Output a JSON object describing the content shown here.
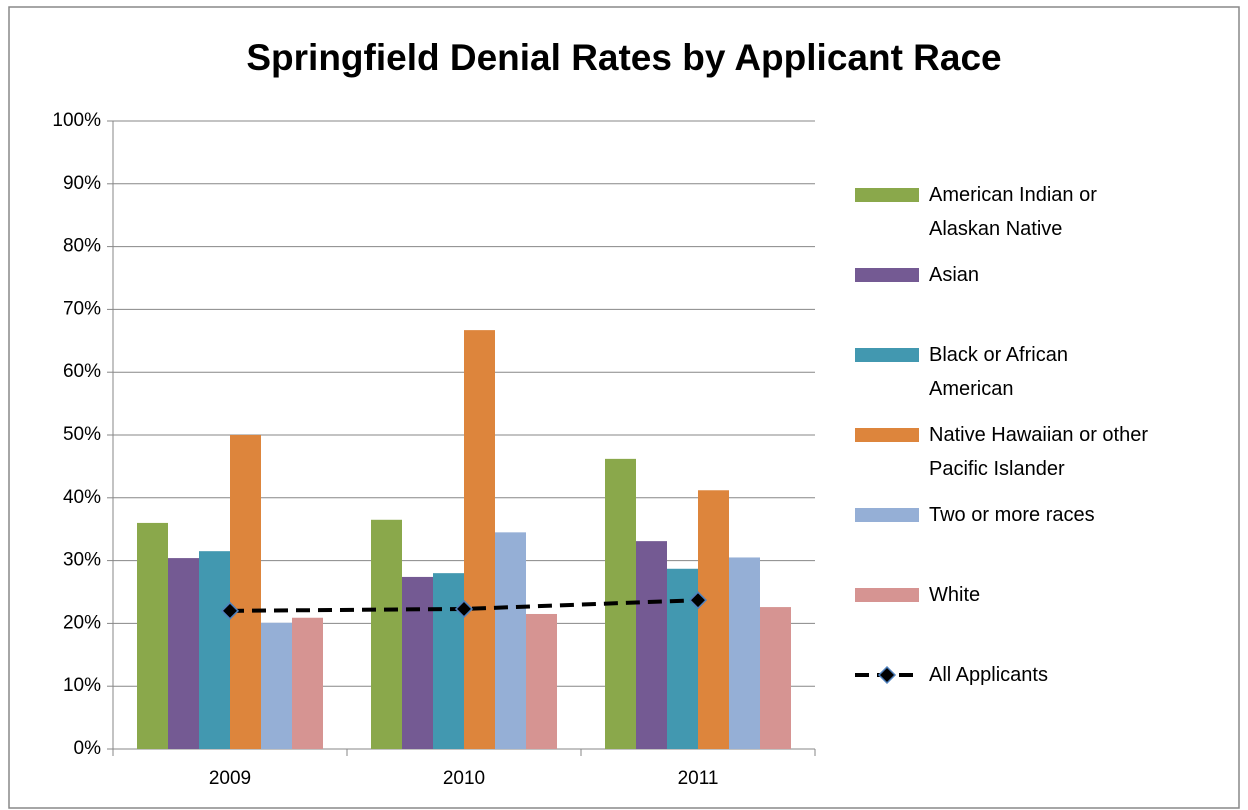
{
  "chart_data": {
    "type": "bar",
    "title": "Springfield Denial Rates by Applicant Race",
    "categories": [
      "2009",
      "2010",
      "2011"
    ],
    "series": [
      {
        "name": "American Indian or Alaskan Native",
        "color": "#8aa84b",
        "values": [
          36,
          36.5,
          46.2
        ]
      },
      {
        "name": "Asian",
        "color": "#745a93",
        "values": [
          30.4,
          27.4,
          33.1
        ]
      },
      {
        "name": "Black or African American",
        "color": "#4298b0",
        "values": [
          31.5,
          28,
          28.7
        ]
      },
      {
        "name": "Native Hawaiian or other Pacific Islander",
        "color": "#dd853c",
        "values": [
          50,
          66.7,
          41.2
        ]
      },
      {
        "name": "Two or more races",
        "color": "#95afd6",
        "values": [
          20.1,
          34.5,
          30.5
        ]
      },
      {
        "name": "White",
        "color": "#d69492",
        "values": [
          20.9,
          21.5,
          22.6
        ]
      },
      {
        "name": "All Applicants",
        "type": "line",
        "color": "#000000",
        "values": [
          22,
          22.3,
          23.7
        ]
      }
    ],
    "ylim": [
      0,
      100
    ],
    "yticks": [
      {
        "value": 0,
        "label": "0%"
      },
      {
        "value": 10,
        "label": "10%"
      },
      {
        "value": 20,
        "label": "20%"
      },
      {
        "value": 30,
        "label": "30%"
      },
      {
        "value": 40,
        "label": "40%"
      },
      {
        "value": 50,
        "label": "50%"
      },
      {
        "value": 60,
        "label": "60%"
      },
      {
        "value": 70,
        "label": "70%"
      },
      {
        "value": 80,
        "label": "80%"
      },
      {
        "value": 90,
        "label": "90%"
      },
      {
        "value": 100,
        "label": "100%"
      }
    ],
    "grid": true,
    "legend": "right"
  }
}
